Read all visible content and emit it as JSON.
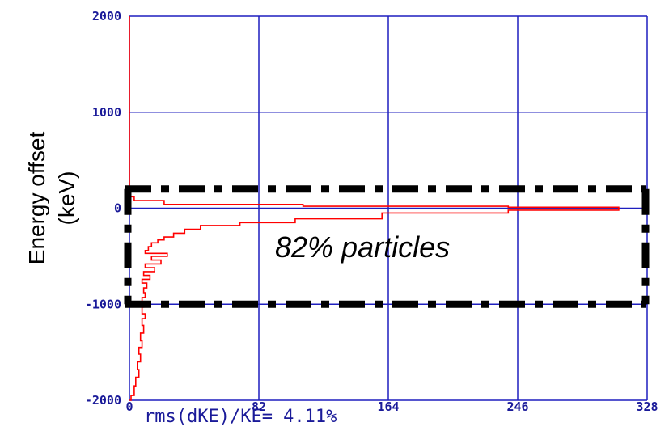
{
  "chart_data": {
    "type": "line",
    "title": "",
    "xlabel": "",
    "ylabel_line1": "Energy offset",
    "ylabel_line2": "(keV)",
    "xlim": [
      0,
      328
    ],
    "ylim": [
      -2000,
      2000
    ],
    "x_ticks": [
      {
        "value": 0,
        "label": "0"
      },
      {
        "value": 82,
        "label": "82"
      },
      {
        "value": 164,
        "label": "164"
      },
      {
        "value": 246,
        "label": "246"
      },
      {
        "value": 328,
        "label": "328"
      }
    ],
    "y_ticks": [
      {
        "value": 2000,
        "label": "2000"
      },
      {
        "value": 1000,
        "label": "1000"
      },
      {
        "value": 0,
        "label": "0"
      },
      {
        "value": -1000,
        "label": "-1000"
      },
      {
        "value": -2000,
        "label": "-2000"
      }
    ],
    "grid": true,
    "series": [
      {
        "color": "#ff0000",
        "style": "histogram-steps",
        "points": [
          [
            0,
            2000
          ],
          [
            0,
            120
          ],
          [
            3,
            120
          ],
          [
            3,
            80
          ],
          [
            22,
            80
          ],
          [
            22,
            40
          ],
          [
            110,
            40
          ],
          [
            110,
            20
          ],
          [
            240,
            20
          ],
          [
            240,
            10
          ],
          [
            310,
            10
          ],
          [
            310,
            -20
          ],
          [
            240,
            -20
          ],
          [
            240,
            -50
          ],
          [
            160,
            -50
          ],
          [
            160,
            -110
          ],
          [
            105,
            -110
          ],
          [
            105,
            -150
          ],
          [
            70,
            -150
          ],
          [
            70,
            -180
          ],
          [
            45,
            -180
          ],
          [
            45,
            -220
          ],
          [
            35,
            -220
          ],
          [
            35,
            -260
          ],
          [
            28,
            -260
          ],
          [
            28,
            -300
          ],
          [
            22,
            -300
          ],
          [
            22,
            -330
          ],
          [
            18,
            -330
          ],
          [
            18,
            -360
          ],
          [
            14,
            -360
          ],
          [
            14,
            -400
          ],
          [
            12,
            -400
          ],
          [
            12,
            -440
          ],
          [
            10,
            -440
          ],
          [
            10,
            -470
          ],
          [
            24,
            -470
          ],
          [
            24,
            -500
          ],
          [
            14,
            -500
          ],
          [
            14,
            -540
          ],
          [
            20,
            -540
          ],
          [
            20,
            -580
          ],
          [
            10,
            -580
          ],
          [
            10,
            -620
          ],
          [
            16,
            -620
          ],
          [
            16,
            -660
          ],
          [
            9,
            -660
          ],
          [
            9,
            -700
          ],
          [
            13,
            -700
          ],
          [
            13,
            -740
          ],
          [
            8,
            -740
          ],
          [
            8,
            -780
          ],
          [
            11,
            -780
          ],
          [
            11,
            -830
          ],
          [
            9,
            -830
          ],
          [
            9,
            -880
          ],
          [
            10,
            -880
          ],
          [
            10,
            -930
          ],
          [
            8,
            -930
          ],
          [
            8,
            -980
          ],
          [
            9,
            -980
          ],
          [
            9,
            -1030
          ],
          [
            8,
            -1030
          ],
          [
            8,
            -1100
          ],
          [
            10,
            -1100
          ],
          [
            10,
            -1150
          ],
          [
            8,
            -1150
          ],
          [
            8,
            -1220
          ],
          [
            9,
            -1220
          ],
          [
            9,
            -1300
          ],
          [
            7,
            -1300
          ],
          [
            7,
            -1380
          ],
          [
            8,
            -1380
          ],
          [
            8,
            -1450
          ],
          [
            6,
            -1450
          ],
          [
            6,
            -1520
          ],
          [
            7,
            -1520
          ],
          [
            7,
            -1600
          ],
          [
            5,
            -1600
          ],
          [
            5,
            -1680
          ],
          [
            6,
            -1680
          ],
          [
            6,
            -1760
          ],
          [
            4,
            -1760
          ],
          [
            4,
            -1850
          ],
          [
            3,
            -1850
          ],
          [
            3,
            -1950
          ],
          [
            1,
            -1950
          ],
          [
            1,
            -2000
          ],
          [
            0,
            -2000
          ]
        ]
      }
    ],
    "selection_box": {
      "y_top": 200,
      "y_bottom": -1000
    },
    "annotations": {
      "box_label": "82% particles",
      "rms_text": "rms(dKE)/KE= 4.11%"
    }
  },
  "colors": {
    "axis": "#1f1fbf",
    "grid": "#1f1fbf",
    "series": "#ff0000",
    "box": "#000000",
    "tick_text": "#1a1a99"
  }
}
